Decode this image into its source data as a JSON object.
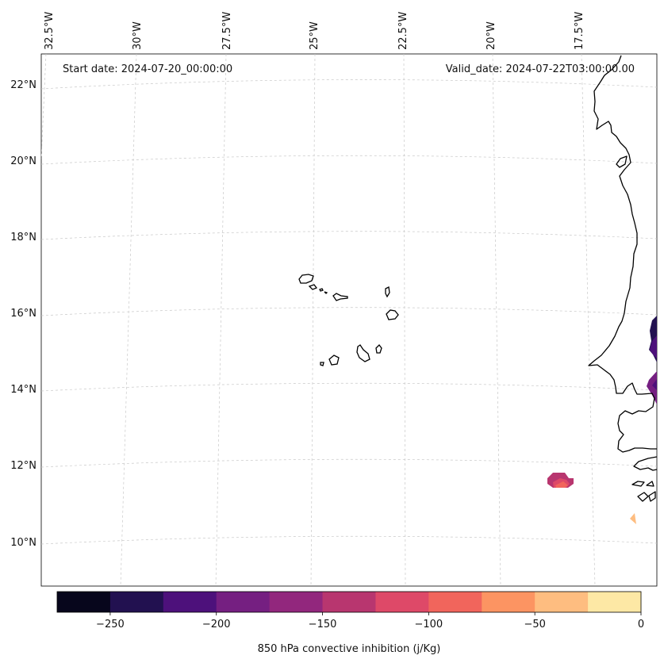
{
  "map": {
    "start_label": "Start date: 2024-07-20_00:00:00",
    "valid_label": "Valid_date: 2024-07-22T03:00:00.00",
    "lon_labels": [
      "32.5°W",
      "30°W",
      "27.5°W",
      "25°W",
      "22.5°W",
      "20°W",
      "17.5°W"
    ],
    "lat_labels": [
      "22°N",
      "20°N",
      "18°N",
      "16°N",
      "14°N",
      "12°N",
      "10°N"
    ],
    "region": "Cape Verde Islands and West African coast (Senegal, Gambia, Guinea-Bissau)"
  },
  "colorbar": {
    "label": "850 hPa convective inhibition (j/Kg)",
    "ticks": [
      "−250",
      "−200",
      "−150",
      "−100",
      "−50",
      "0"
    ],
    "tick_values": [
      -250,
      -200,
      -150,
      -100,
      -50,
      0
    ],
    "range": [
      -275,
      0
    ],
    "bins": [
      {
        "from": -275,
        "to": -250,
        "color": "#07061c"
      },
      {
        "from": -250,
        "to": -225,
        "color": "#221150"
      },
      {
        "from": -225,
        "to": -200,
        "color": "#4d117b"
      },
      {
        "from": -200,
        "to": -175,
        "color": "#751f81"
      },
      {
        "from": -175,
        "to": -150,
        "color": "#92277d"
      },
      {
        "from": -150,
        "to": -125,
        "color": "#b8366f"
      },
      {
        "from": -125,
        "to": -100,
        "color": "#de4968"
      },
      {
        "from": -100,
        "to": -75,
        "color": "#f1655c"
      },
      {
        "from": -75,
        "to": -50,
        "color": "#fc9462"
      },
      {
        "from": -50,
        "to": -25,
        "color": "#febd80"
      },
      {
        "from": -25,
        "to": 0,
        "color": "#fde8a5"
      }
    ]
  }
}
